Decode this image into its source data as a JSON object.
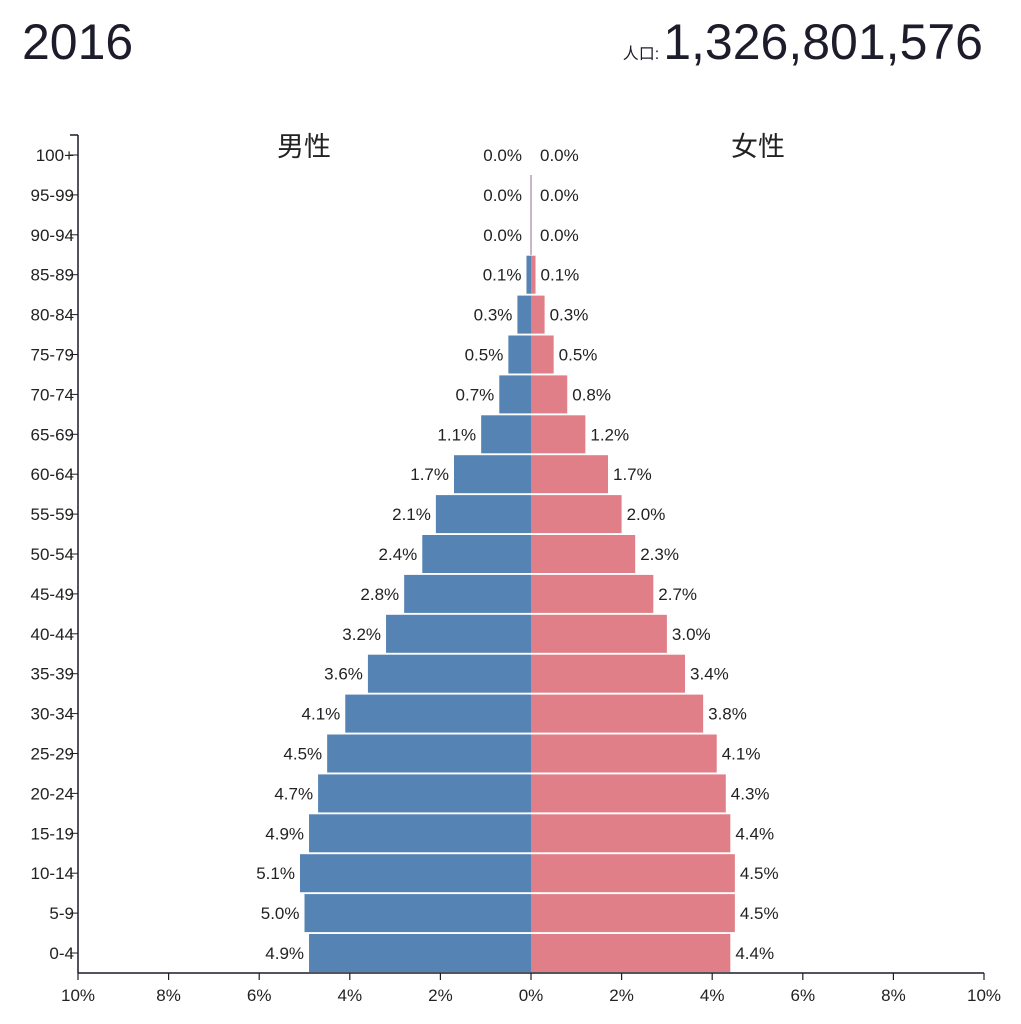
{
  "header": {
    "year": "2016",
    "population_label": "人口:",
    "population_value": "1,326,801,576"
  },
  "chart_data": {
    "type": "bar",
    "orientation": "horizontal-pyramid",
    "title": "",
    "male_label": "男性",
    "female_label": "女性",
    "categories": [
      "100+",
      "95-99",
      "90-94",
      "85-89",
      "80-84",
      "75-79",
      "70-74",
      "65-69",
      "60-64",
      "55-59",
      "50-54",
      "45-49",
      "40-44",
      "35-39",
      "30-34",
      "25-29",
      "20-24",
      "15-19",
      "10-14",
      "5-9",
      "0-4"
    ],
    "series": [
      {
        "name": "男性",
        "values": [
          0.0,
          0.0,
          0.0,
          0.1,
          0.3,
          0.5,
          0.7,
          1.1,
          1.7,
          2.1,
          2.4,
          2.8,
          3.2,
          3.6,
          4.1,
          4.5,
          4.7,
          4.9,
          5.1,
          5.0,
          4.9
        ],
        "labels": [
          "0.0%",
          "0.0%",
          "0.0%",
          "0.1%",
          "0.3%",
          "0.5%",
          "0.7%",
          "1.1%",
          "1.7%",
          "2.1%",
          "2.4%",
          "2.8%",
          "3.2%",
          "3.6%",
          "4.1%",
          "4.5%",
          "4.7%",
          "4.9%",
          "5.1%",
          "5.0%",
          "4.9%"
        ],
        "color": "#5583b3"
      },
      {
        "name": "女性",
        "values": [
          0.0,
          0.0,
          0.0,
          0.1,
          0.3,
          0.5,
          0.8,
          1.2,
          1.7,
          2.0,
          2.3,
          2.7,
          3.0,
          3.4,
          3.8,
          4.1,
          4.3,
          4.4,
          4.5,
          4.5,
          4.4
        ],
        "labels": [
          "0.0%",
          "0.0%",
          "0.0%",
          "0.1%",
          "0.3%",
          "0.5%",
          "0.8%",
          "1.2%",
          "1.7%",
          "2.0%",
          "2.3%",
          "2.7%",
          "3.0%",
          "3.4%",
          "3.8%",
          "4.1%",
          "4.3%",
          "4.4%",
          "4.5%",
          "4.5%",
          "4.4%"
        ],
        "color": "#e07f87"
      }
    ],
    "xlim": [
      -10,
      10
    ],
    "x_ticks": [
      -10,
      -8,
      -6,
      -4,
      -2,
      0,
      2,
      4,
      6,
      8,
      10
    ],
    "x_tick_labels": [
      "10%",
      "8%",
      "6%",
      "4%",
      "2%",
      "0%",
      "2%",
      "4%",
      "6%",
      "8%",
      "10%"
    ],
    "grid": false,
    "legend": "none"
  }
}
